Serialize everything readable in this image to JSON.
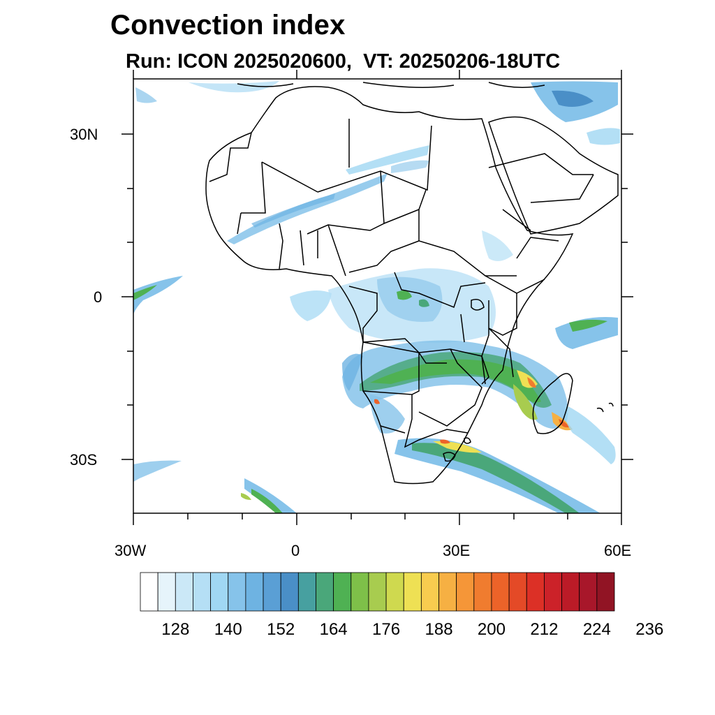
{
  "title": "Convection index",
  "subtitle": "Run: ICON 2025020600,  VT: 20250206-18UTC",
  "axes": {
    "x_ticks": [
      {
        "label": "30W",
        "lon": -30
      },
      {
        "label": "0",
        "lon": 0
      },
      {
        "label": "30E",
        "lon": 30
      },
      {
        "label": "60E",
        "lon": 60
      }
    ],
    "y_ticks": [
      {
        "label": "30N",
        "lat": 30
      },
      {
        "label": "0",
        "lat": 0
      },
      {
        "label": "30S",
        "lat": -30
      }
    ],
    "lon_range": [
      -30,
      60
    ],
    "lat_range": [
      -40,
      40
    ]
  },
  "colorbar": {
    "colors": [
      "#ffffff",
      "#e6f4fb",
      "#cbe8f7",
      "#b5dff5",
      "#a0d7f3",
      "#86c3ea",
      "#6eb3e2",
      "#5a9fd5",
      "#4a8fc7",
      "#47a0a0",
      "#4aa77a",
      "#4fb153",
      "#7ec049",
      "#a8cc4f",
      "#cfd94f",
      "#eee054",
      "#f8cc4f",
      "#f6b043",
      "#f59638",
      "#f07c2f",
      "#ec6329",
      "#e44a27",
      "#dc3026",
      "#cc2229",
      "#bb1b27",
      "#a8172a",
      "#911424"
    ],
    "labels": [
      "128",
      "140",
      "152",
      "164",
      "176",
      "188",
      "200",
      "212",
      "224",
      "236"
    ],
    "label_boundaries": [
      2,
      5,
      8,
      11,
      14,
      17,
      20,
      23,
      26,
      29
    ]
  }
}
